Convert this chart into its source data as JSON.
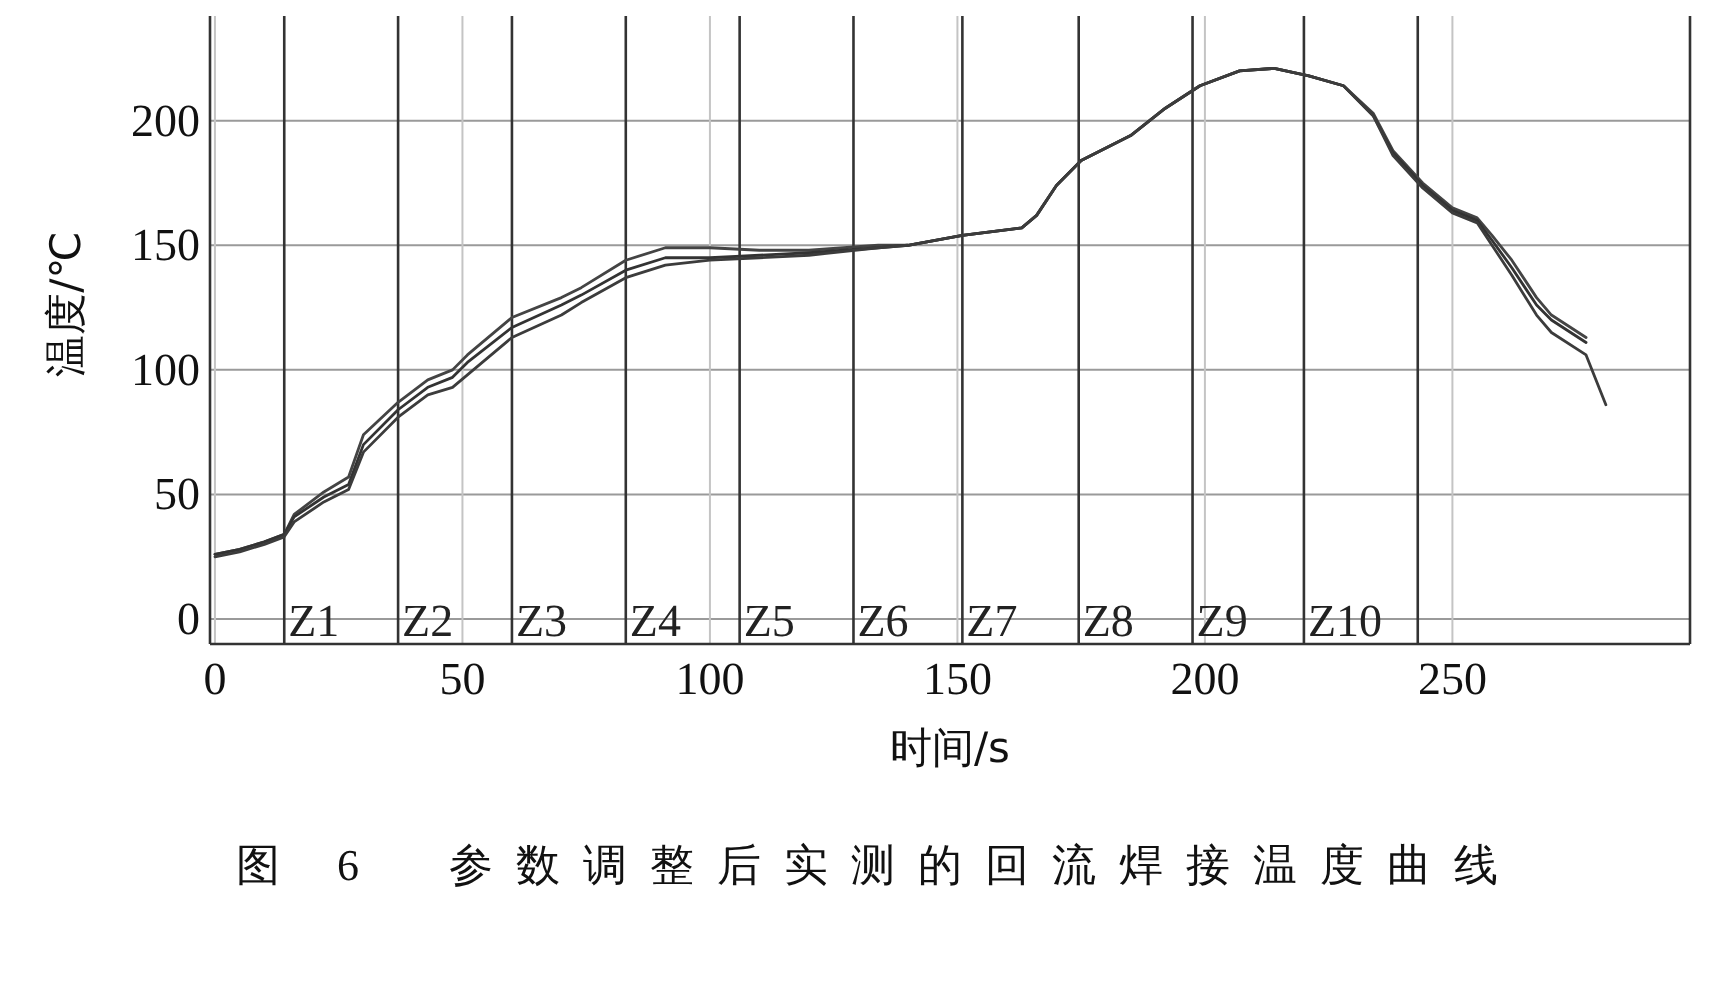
{
  "chart_data": {
    "type": "line",
    "title": "图 6　参数调整后实测的回流焊接温度曲线",
    "xlabel": "时间/s",
    "ylabel": "温度/℃",
    "x": [
      0,
      5,
      10,
      14,
      16,
      22,
      27,
      30,
      37,
      43,
      48,
      51,
      60,
      70,
      74,
      83,
      91,
      100,
      110,
      120,
      134,
      140,
      151,
      163,
      166,
      170,
      175,
      185,
      192,
      199,
      207,
      214,
      221,
      228,
      234,
      238,
      244,
      250,
      255,
      258,
      262,
      267,
      270,
      277
    ],
    "series": [
      {
        "color": "#444444",
        "values": [
          26,
          28,
          31,
          34,
          42,
          51,
          57,
          74,
          87,
          96,
          100,
          106,
          121,
          129,
          133,
          144,
          149,
          149,
          148,
          148,
          150,
          150,
          154,
          157,
          162,
          174,
          184,
          194,
          205,
          214,
          220,
          221,
          218,
          214,
          203,
          188,
          175,
          165,
          161,
          154,
          144,
          129,
          122,
          113
        ]
      },
      {
        "color": "#333333",
        "values": [
          26,
          28,
          31,
          34,
          41,
          49,
          54,
          70,
          84,
          93,
          97,
          103,
          117,
          126,
          130,
          140,
          145,
          145,
          146,
          147,
          149,
          150,
          154,
          157,
          162,
          174,
          184,
          194,
          205,
          214,
          220,
          221,
          218,
          214,
          202,
          187,
          174,
          164,
          160,
          152,
          141,
          126,
          120,
          111
        ]
      },
      {
        "color": "#3c3c3c",
        "x": [
          0,
          5,
          10,
          14,
          16,
          22,
          27,
          30,
          37,
          43,
          48,
          51,
          60,
          70,
          74,
          83,
          91,
          100,
          110,
          120,
          134,
          140,
          151,
          163,
          166,
          170,
          175,
          185,
          192,
          199,
          207,
          214,
          221,
          228,
          234,
          238,
          244,
          250,
          255,
          258,
          262,
          267,
          270,
          277,
          281
        ],
        "values": [
          25,
          27,
          30,
          33,
          39,
          47,
          52,
          67,
          81,
          90,
          93,
          98,
          113,
          122,
          127,
          137,
          142,
          144,
          145,
          146,
          149,
          150,
          154,
          157,
          162,
          174,
          184,
          194,
          205,
          214,
          220,
          221,
          218,
          214,
          202,
          186,
          173,
          163,
          159,
          150,
          138,
          122,
          115,
          106,
          86
        ]
      }
    ],
    "xlim": [
      -1,
      298
    ],
    "xticks": [
      0,
      50,
      100,
      150,
      200,
      250
    ],
    "ylim": [
      -10,
      242
    ],
    "yticks": [
      0,
      50,
      100,
      150,
      200
    ],
    "grid": true,
    "ref_lines": [
      {
        "axis": "x",
        "value": 14,
        "label": "Z1"
      },
      {
        "axis": "x",
        "value": 37,
        "label": "Z2"
      },
      {
        "axis": "x",
        "value": 60,
        "label": "Z3"
      },
      {
        "axis": "x",
        "value": 83,
        "label": "Z4"
      },
      {
        "axis": "x",
        "value": 106,
        "label": "Z5"
      },
      {
        "axis": "x",
        "value": 129,
        "label": "Z6"
      },
      {
        "axis": "x",
        "value": 151,
        "label": "Z7"
      },
      {
        "axis": "x",
        "value": 174.5,
        "label": "Z8"
      },
      {
        "axis": "x",
        "value": 197.5,
        "label": "Z9"
      },
      {
        "axis": "x",
        "value": 220,
        "label": "Z10"
      },
      {
        "axis": "x",
        "value": 243,
        "label": null
      }
    ]
  }
}
